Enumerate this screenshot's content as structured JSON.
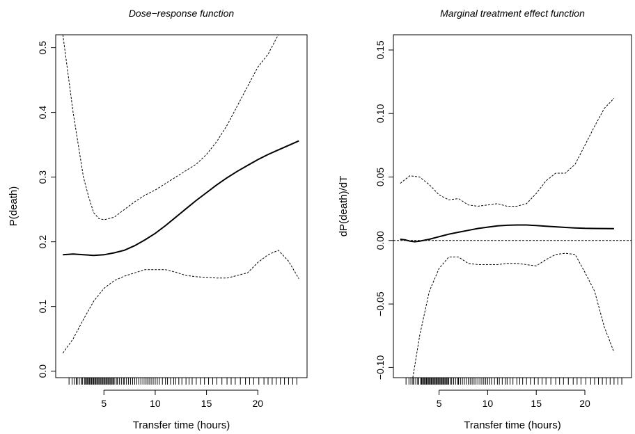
{
  "chart_data": [
    {
      "type": "line",
      "title": "Dose−response function",
      "xlabel": "Transfer time (hours)",
      "ylabel": "P(death)",
      "xlim": [
        0.3,
        24.8
      ],
      "ylim": [
        -0.01,
        0.52
      ],
      "xticks": [
        5,
        10,
        15,
        20
      ],
      "yticks": [
        0.0,
        0.1,
        0.2,
        0.3,
        0.4,
        0.5
      ],
      "yticklabels": [
        "0.0",
        "0.1",
        "0.2",
        "0.3",
        "0.4",
        "0.5"
      ],
      "grid": false,
      "series": [
        {
          "style": "solid",
          "x": [
            1.0,
            2.0,
            3.0,
            4.0,
            5.0,
            6.0,
            7.0,
            8.0,
            9.0,
            10.0,
            11.0,
            12.0,
            13.0,
            14.0,
            15.0,
            16.0,
            17.0,
            18.0,
            19.0,
            20.0,
            21.0,
            22.0,
            23.0,
            24.0
          ],
          "y": [
            0.18,
            0.181,
            0.18,
            0.179,
            0.18,
            0.183,
            0.187,
            0.194,
            0.203,
            0.213,
            0.225,
            0.238,
            0.251,
            0.264,
            0.276,
            0.288,
            0.299,
            0.309,
            0.318,
            0.327,
            0.335,
            0.342,
            0.349,
            0.356
          ]
        },
        {
          "style": "dashed",
          "x": [
            1.0,
            2.0,
            3.0,
            3.5,
            4.0,
            4.5,
            5.0,
            6.0,
            7.0,
            8.0,
            9.0,
            10.0,
            11.0,
            12.0,
            13.0,
            14.0,
            15.0,
            16.0,
            17.0,
            18.0,
            19.0,
            20.0,
            21.0,
            22.0
          ],
          "y": [
            0.52,
            0.4,
            0.3,
            0.27,
            0.245,
            0.236,
            0.234,
            0.238,
            0.25,
            0.262,
            0.272,
            0.28,
            0.29,
            0.3,
            0.31,
            0.32,
            0.335,
            0.355,
            0.38,
            0.41,
            0.44,
            0.47,
            0.49,
            0.52
          ]
        },
        {
          "style": "dashed",
          "x": [
            1.0,
            2.0,
            3.0,
            4.0,
            5.0,
            6.0,
            7.0,
            8.0,
            9.0,
            10.0,
            11.0,
            12.0,
            13.0,
            14.0,
            15.0,
            16.0,
            17.0,
            18.0,
            19.0,
            20.0,
            21.0,
            22.0,
            23.0,
            24.0
          ],
          "y": [
            0.028,
            0.05,
            0.08,
            0.108,
            0.128,
            0.14,
            0.147,
            0.152,
            0.157,
            0.157,
            0.157,
            0.153,
            0.148,
            0.146,
            0.145,
            0.144,
            0.144,
            0.148,
            0.152,
            0.168,
            0.18,
            0.187,
            0.17,
            0.143
          ]
        }
      ],
      "rug": [
        1.6,
        1.9,
        2.1,
        2.3,
        2.4,
        2.6,
        2.8,
        2.9,
        3.1,
        3.2,
        3.3,
        3.4,
        3.5,
        3.6,
        3.7,
        3.8,
        3.9,
        4.0,
        4.1,
        4.2,
        4.3,
        4.4,
        4.5,
        4.6,
        4.7,
        4.8,
        4.9,
        5.0,
        5.1,
        5.2,
        5.3,
        5.4,
        5.5,
        5.6,
        5.7,
        5.8,
        5.9,
        6.0,
        6.2,
        6.3,
        6.5,
        6.7,
        6.9,
        7.0,
        7.2,
        7.4,
        7.6,
        7.8,
        8.0,
        8.2,
        8.4,
        8.6,
        8.8,
        9.0,
        9.2,
        9.4,
        9.6,
        9.8,
        10.0,
        10.2,
        10.4,
        10.7,
        11.0,
        11.2,
        11.5,
        11.8,
        12.0,
        12.3,
        12.6,
        13.0,
        13.3,
        13.6,
        14.0,
        14.4,
        14.8,
        15.2,
        15.6,
        16.0,
        16.5,
        17.0,
        17.4,
        17.8,
        18.3,
        18.8,
        19.2,
        19.6,
        20.1,
        20.6,
        21.0,
        21.4,
        21.8,
        22.2,
        22.6,
        23.0,
        23.4,
        23.8
      ]
    },
    {
      "type": "line",
      "title": "Marginal treatment effect function",
      "xlabel": "Transfer time (hours)",
      "ylabel": "dP(death)/dT",
      "xlim": [
        0.3,
        24.8
      ],
      "ylim": [
        -0.108,
        0.162
      ],
      "xticks": [
        5,
        10,
        15,
        20
      ],
      "yticks": [
        -0.1,
        -0.05,
        0.0,
        0.05,
        0.1,
        0.15
      ],
      "yticklabels": [
        "−0.10",
        "−0.05",
        "0.00",
        "0.05",
        "0.10",
        "0.15"
      ],
      "grid": false,
      "reference_line": 0.0,
      "series": [
        {
          "style": "solid",
          "x": [
            1.0,
            1.5,
            2.0,
            2.5,
            3.0,
            4.0,
            5.0,
            6.0,
            7.0,
            8.0,
            9.0,
            10.0,
            11.0,
            12.0,
            13.0,
            14.0,
            15.0,
            16.0,
            17.0,
            18.0,
            19.0,
            20.0,
            21.0,
            22.0,
            23.0
          ],
          "y": [
            0.001,
            0.0005,
            -0.0005,
            -0.001,
            -0.0005,
            0.001,
            0.003,
            0.005,
            0.0065,
            0.008,
            0.0095,
            0.0105,
            0.0115,
            0.012,
            0.0122,
            0.0122,
            0.0118,
            0.0113,
            0.0108,
            0.0103,
            0.0099,
            0.0096,
            0.0095,
            0.0094,
            0.0093
          ]
        },
        {
          "style": "dashed",
          "x": [
            1.0,
            2.0,
            3.0,
            4.0,
            5.0,
            6.0,
            7.0,
            8.0,
            9.0,
            10.0,
            11.0,
            12.0,
            13.0,
            14.0,
            15.0,
            16.0,
            17.0,
            18.0,
            19.0,
            20.0,
            21.0,
            22.0,
            23.0
          ],
          "y": [
            0.045,
            0.051,
            0.05,
            0.044,
            0.036,
            0.032,
            0.033,
            0.028,
            0.027,
            0.028,
            0.029,
            0.027,
            0.027,
            0.029,
            0.037,
            0.047,
            0.053,
            0.053,
            0.06,
            0.075,
            0.09,
            0.104,
            0.112
          ]
        },
        {
          "style": "dashed",
          "x": [
            2.3,
            3.0,
            4.0,
            5.0,
            6.0,
            7.0,
            8.0,
            9.0,
            10.0,
            11.0,
            12.0,
            13.0,
            14.0,
            15.0,
            16.0,
            17.0,
            18.0,
            19.0,
            20.0,
            21.0,
            22.0,
            23.0
          ],
          "y": [
            -0.108,
            -0.075,
            -0.04,
            -0.022,
            -0.013,
            -0.013,
            -0.018,
            -0.019,
            -0.019,
            -0.019,
            -0.018,
            -0.018,
            -0.019,
            -0.02,
            -0.015,
            -0.011,
            -0.01,
            -0.011,
            -0.025,
            -0.04,
            -0.068,
            -0.088
          ]
        }
      ],
      "rug": [
        1.6,
        1.9,
        2.1,
        2.3,
        2.4,
        2.6,
        2.8,
        2.9,
        3.1,
        3.2,
        3.3,
        3.4,
        3.5,
        3.6,
        3.7,
        3.8,
        3.9,
        4.0,
        4.1,
        4.2,
        4.3,
        4.4,
        4.5,
        4.6,
        4.7,
        4.8,
        4.9,
        5.0,
        5.1,
        5.2,
        5.3,
        5.4,
        5.5,
        5.6,
        5.7,
        5.8,
        5.9,
        6.0,
        6.2,
        6.3,
        6.5,
        6.7,
        6.9,
        7.0,
        7.2,
        7.4,
        7.6,
        7.8,
        8.0,
        8.2,
        8.4,
        8.6,
        8.8,
        9.0,
        9.2,
        9.4,
        9.6,
        9.8,
        10.0,
        10.2,
        10.4,
        10.7,
        11.0,
        11.2,
        11.5,
        11.8,
        12.0,
        12.3,
        12.6,
        13.0,
        13.3,
        13.6,
        14.0,
        14.4,
        14.8,
        15.2,
        15.6,
        16.0,
        16.5,
        17.0,
        17.4,
        17.8,
        18.3,
        18.8,
        19.2,
        19.6,
        20.1,
        20.6,
        21.0,
        21.4,
        21.8,
        22.2,
        22.6,
        23.0,
        23.4,
        23.8
      ]
    }
  ]
}
